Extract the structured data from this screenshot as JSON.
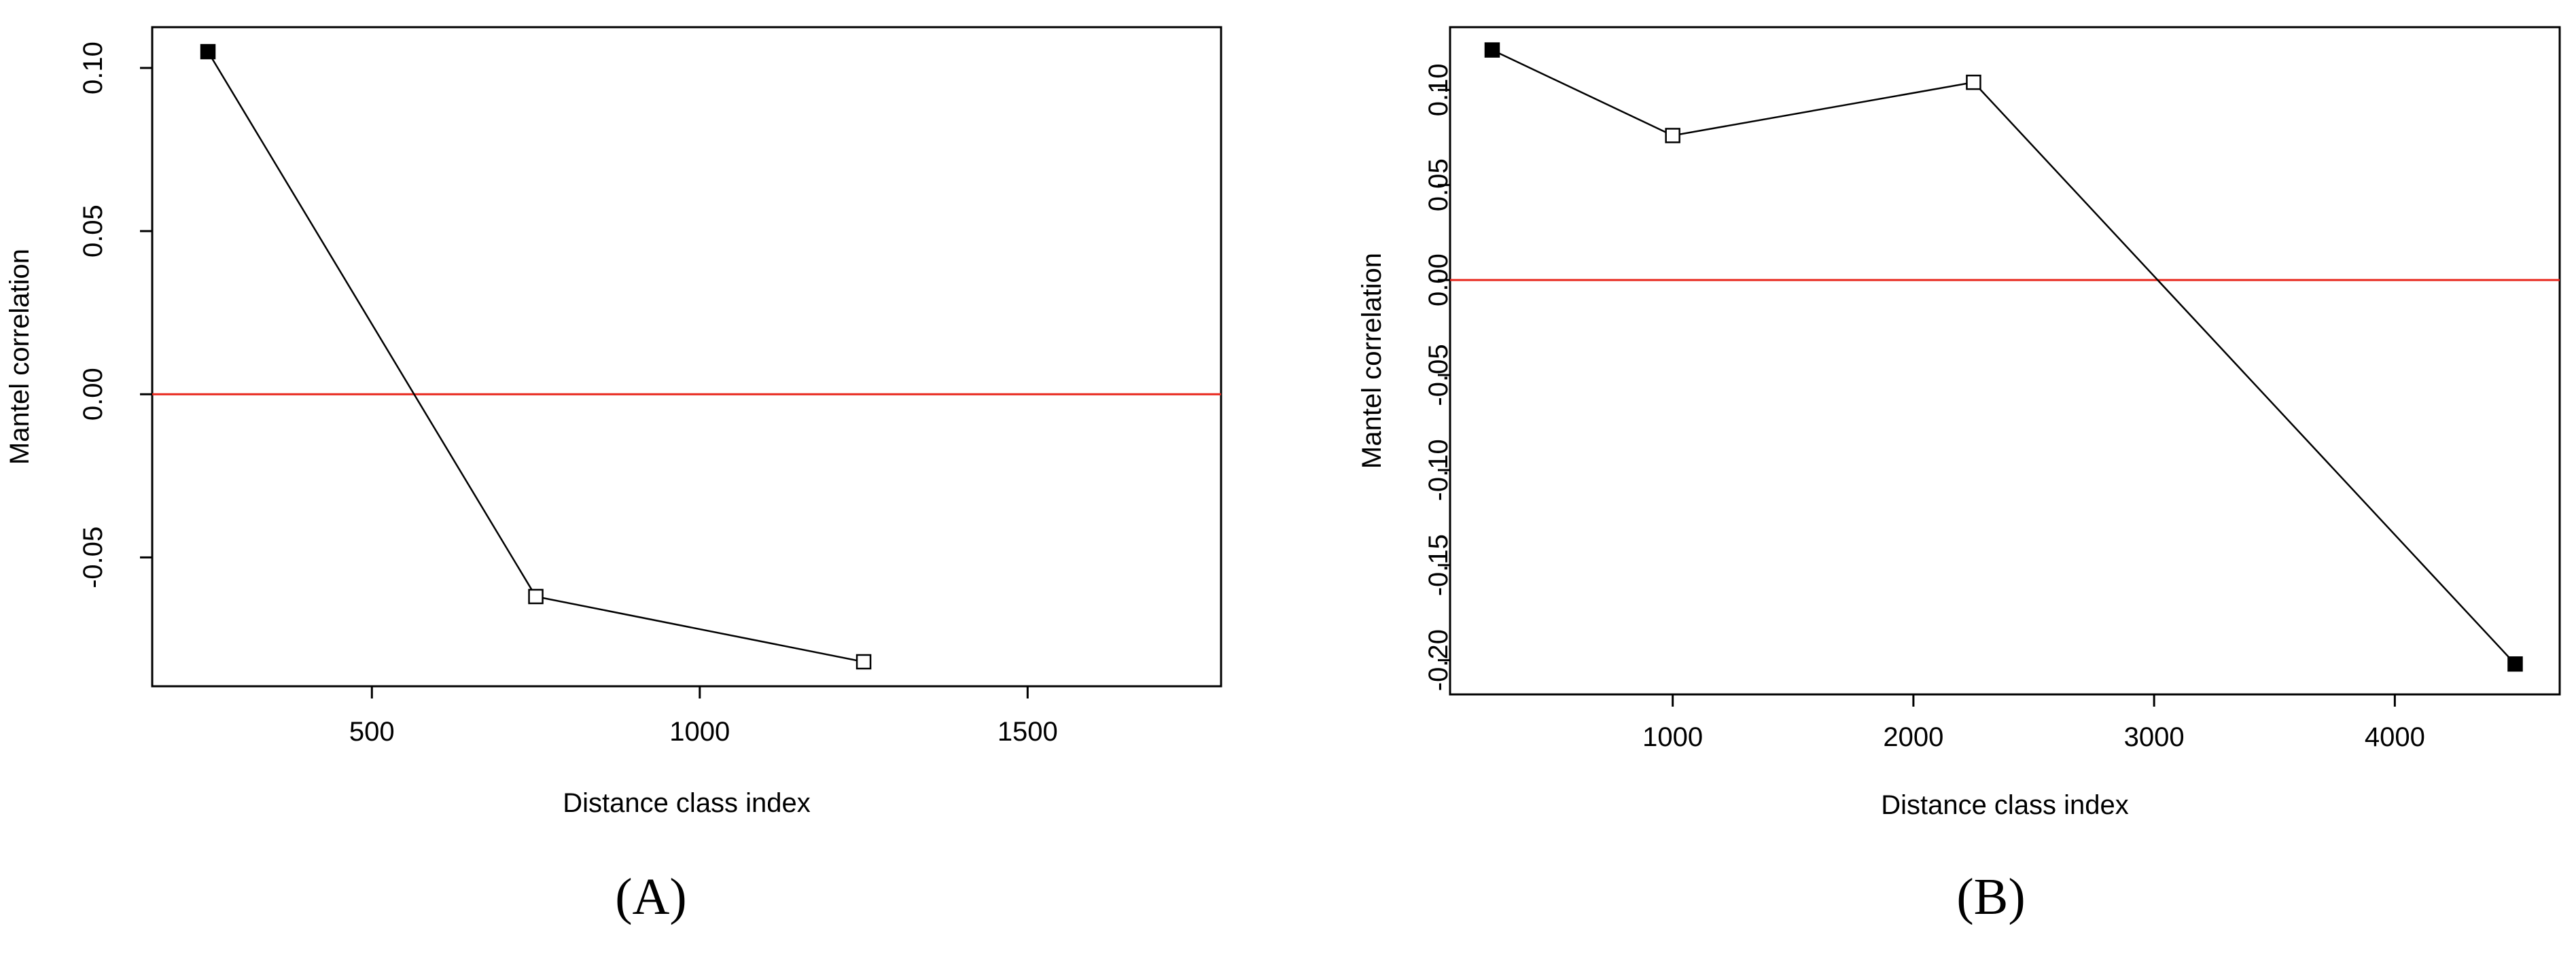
{
  "chart_data": [
    {
      "panel_label": "(A)",
      "type": "line",
      "xlabel": "Distance class index",
      "ylabel": "Mantel correlation",
      "xlim": [
        165,
        1795
      ],
      "ylim": [
        -0.0895,
        0.1125
      ],
      "xticks": [
        500,
        1000,
        1500
      ],
      "yticks": [
        -0.05,
        0.0,
        0.05,
        0.1
      ],
      "ytick_labels": [
        "-0.05",
        "0.00",
        "0.05",
        "0.10"
      ],
      "xtick_labels": [
        "500",
        "1000",
        "1500"
      ],
      "reference_line": {
        "y": 0,
        "color": "#e8261c"
      },
      "points": [
        {
          "x": 250,
          "y": 0.105,
          "filled": true
        },
        {
          "x": 750,
          "y": -0.062,
          "filled": false
        },
        {
          "x": 1250,
          "y": -0.082,
          "filled": false
        }
      ]
    },
    {
      "panel_label": "(B)",
      "type": "line",
      "xlabel": "Distance class index",
      "ylabel": "Mantel correlation",
      "xlim": [
        75,
        4685
      ],
      "ylim": [
        -0.218,
        0.133
      ],
      "xticks": [
        1000,
        2000,
        3000,
        4000
      ],
      "yticks": [
        -0.2,
        -0.15,
        -0.1,
        -0.05,
        0.0,
        0.05,
        0.1
      ],
      "ytick_labels": [
        "-0.20",
        "-0.15",
        "-0.10",
        "-0.05",
        "0.00",
        "0.05",
        "0.10"
      ],
      "xtick_labels": [
        "1000",
        "2000",
        "3000",
        "4000"
      ],
      "reference_line": {
        "y": 0,
        "color": "#e8261c"
      },
      "points": [
        {
          "x": 250,
          "y": 0.121,
          "filled": true
        },
        {
          "x": 1000,
          "y": 0.076,
          "filled": false
        },
        {
          "x": 2250,
          "y": 0.104,
          "filled": false
        },
        {
          "x": 4500,
          "y": -0.202,
          "filled": true
        }
      ]
    }
  ]
}
